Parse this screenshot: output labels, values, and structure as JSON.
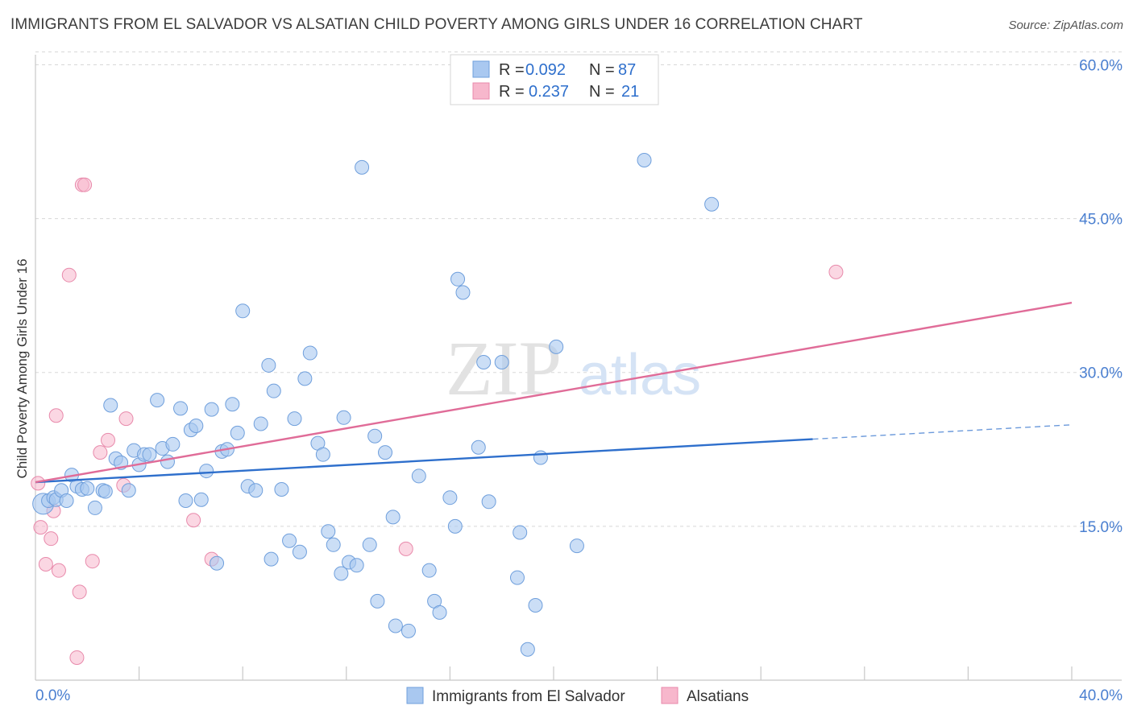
{
  "header": {
    "title": "IMMIGRANTS FROM EL SALVADOR VS ALSATIAN CHILD POVERTY AMONG GIRLS UNDER 16 CORRELATION CHART",
    "source": "Source: ZipAtlas.com"
  },
  "watermark": {
    "zip": "ZIP",
    "atlas": "atlas"
  },
  "stats_box": {
    "rows": [
      {
        "r_label": "R = ",
        "r_value": "0.092",
        "n_label": "N = ",
        "n_value": "87",
        "color": "#a9c8f0"
      },
      {
        "r_label": "R = ",
        "r_value": "0.237",
        "n_label": "N = ",
        "n_value": "21",
        "color": "#f7b7cc"
      }
    ]
  },
  "chart_data": {
    "type": "scatter",
    "ylabel": "Child Poverty Among Girls Under 16",
    "xlabel": "",
    "x_tick_labels": [
      "0.0%",
      "40.0%"
    ],
    "y_tick_labels": [
      "15.0%",
      "30.0%",
      "45.0%",
      "60.0%"
    ],
    "y_ticks": [
      15,
      30,
      45,
      60
    ],
    "xlim": [
      0,
      40
    ],
    "ylim": [
      0,
      62
    ],
    "grid": true,
    "legend_position": "bottom",
    "colors": {
      "blue_fill": "#a9c8f0",
      "blue_stroke": "#6f9fdc",
      "blue_line": "#2e6fcc",
      "pink_fill": "#f7b7cc",
      "pink_stroke": "#e88aab",
      "pink_line": "#e06c98",
      "axis_text": "#4a7fd0",
      "grid": "#d8d8d8"
    },
    "series": [
      {
        "name": "Immigrants from El Salvador",
        "color": "#a9c8f0",
        "trend": {
          "x": [
            0,
            30
          ],
          "y": [
            19.3,
            23.5
          ],
          "dashed_to": [
            40,
            24.9
          ]
        },
        "points": [
          [
            0.3,
            17.2
          ],
          [
            0.5,
            17.5
          ],
          [
            0.7,
            17.8
          ],
          [
            0.8,
            17.6
          ],
          [
            1.0,
            18.5
          ],
          [
            1.2,
            17.5
          ],
          [
            1.4,
            20.0
          ],
          [
            1.6,
            18.9
          ],
          [
            1.8,
            18.6
          ],
          [
            2.0,
            18.7
          ],
          [
            2.3,
            16.8
          ],
          [
            2.6,
            18.5
          ],
          [
            2.7,
            18.4
          ],
          [
            2.9,
            26.8
          ],
          [
            3.1,
            21.6
          ],
          [
            3.3,
            21.2
          ],
          [
            3.6,
            18.5
          ],
          [
            3.8,
            22.4
          ],
          [
            4.0,
            21.0
          ],
          [
            4.2,
            22.0
          ],
          [
            4.4,
            22.0
          ],
          [
            4.7,
            27.3
          ],
          [
            4.9,
            22.6
          ],
          [
            5.1,
            21.3
          ],
          [
            5.3,
            23.0
          ],
          [
            5.6,
            26.5
          ],
          [
            5.8,
            17.5
          ],
          [
            6.0,
            24.4
          ],
          [
            6.2,
            24.8
          ],
          [
            6.4,
            17.6
          ],
          [
            6.6,
            20.4
          ],
          [
            6.8,
            26.4
          ],
          [
            7.0,
            11.4
          ],
          [
            7.2,
            22.3
          ],
          [
            7.4,
            22.5
          ],
          [
            7.6,
            26.9
          ],
          [
            7.8,
            24.1
          ],
          [
            8.0,
            36.0
          ],
          [
            8.2,
            18.9
          ],
          [
            8.5,
            18.5
          ],
          [
            8.7,
            25.0
          ],
          [
            9.0,
            30.7
          ],
          [
            9.2,
            28.2
          ],
          [
            9.1,
            11.8
          ],
          [
            9.5,
            18.6
          ],
          [
            9.8,
            13.6
          ],
          [
            10.0,
            25.5
          ],
          [
            10.2,
            12.5
          ],
          [
            10.4,
            29.4
          ],
          [
            10.6,
            31.9
          ],
          [
            10.9,
            23.1
          ],
          [
            11.1,
            22.0
          ],
          [
            11.3,
            14.5
          ],
          [
            11.5,
            13.2
          ],
          [
            11.8,
            10.4
          ],
          [
            11.9,
            25.6
          ],
          [
            12.1,
            11.5
          ],
          [
            12.4,
            11.2
          ],
          [
            12.6,
            50.0
          ],
          [
            12.9,
            13.2
          ],
          [
            13.1,
            23.8
          ],
          [
            13.2,
            7.7
          ],
          [
            13.5,
            22.2
          ],
          [
            13.8,
            15.9
          ],
          [
            13.9,
            5.3
          ],
          [
            14.4,
            4.8
          ],
          [
            14.8,
            19.9
          ],
          [
            15.2,
            10.7
          ],
          [
            15.4,
            7.7
          ],
          [
            15.6,
            6.6
          ],
          [
            16.0,
            17.8
          ],
          [
            16.2,
            15.0
          ],
          [
            16.3,
            39.1
          ],
          [
            16.5,
            37.8
          ],
          [
            17.1,
            22.7
          ],
          [
            17.3,
            31.0
          ],
          [
            17.5,
            17.4
          ],
          [
            18.0,
            31.0
          ],
          [
            18.6,
            10.0
          ],
          [
            18.7,
            14.4
          ],
          [
            19.0,
            3.0
          ],
          [
            19.3,
            7.3
          ],
          [
            19.5,
            21.7
          ],
          [
            20.1,
            32.5
          ],
          [
            20.9,
            13.1
          ],
          [
            23.5,
            50.7
          ],
          [
            26.1,
            46.4
          ]
        ]
      },
      {
        "name": "Alsatians",
        "color": "#f7b7cc",
        "trend": {
          "x": [
            0,
            40
          ],
          "y": [
            19.3,
            36.8
          ]
        },
        "points": [
          [
            0.1,
            19.2
          ],
          [
            0.2,
            14.9
          ],
          [
            0.4,
            11.3
          ],
          [
            0.6,
            13.8
          ],
          [
            0.7,
            16.5
          ],
          [
            0.8,
            25.8
          ],
          [
            0.9,
            10.7
          ],
          [
            1.3,
            39.5
          ],
          [
            1.7,
            8.6
          ],
          [
            1.6,
            2.2
          ],
          [
            1.8,
            48.3
          ],
          [
            1.9,
            48.3
          ],
          [
            2.2,
            11.6
          ],
          [
            2.5,
            22.2
          ],
          [
            2.8,
            23.4
          ],
          [
            3.4,
            19.0
          ],
          [
            3.5,
            25.5
          ],
          [
            6.1,
            15.6
          ],
          [
            6.8,
            11.8
          ],
          [
            14.3,
            12.8
          ],
          [
            30.9,
            39.8
          ]
        ]
      }
    ]
  },
  "legend": {
    "items": [
      {
        "label": "Immigrants from El Salvador",
        "color": "#a9c8f0"
      },
      {
        "label": "Alsatians",
        "color": "#f7b7cc"
      }
    ]
  }
}
